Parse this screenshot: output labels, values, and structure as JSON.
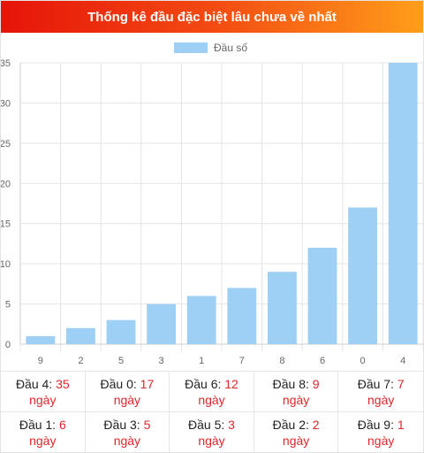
{
  "title": "Thống kê đầu đặc biệt lâu chưa về nhất",
  "colors": {
    "bar": "#9ecff5",
    "accent": "#e0262b",
    "title_gradient": [
      "#e6140a",
      "#ff9e1a"
    ]
  },
  "chart_data": {
    "type": "bar",
    "categories": [
      "9",
      "2",
      "5",
      "3",
      "1",
      "7",
      "8",
      "6",
      "0",
      "4"
    ],
    "series": [
      {
        "name": "Đầu số",
        "values": [
          1,
          2,
          3,
          5,
          6,
          7,
          9,
          12,
          17,
          35
        ]
      }
    ],
    "yticks": [
      "0",
      "5",
      "10",
      "15",
      "20",
      "25",
      "30",
      "35"
    ],
    "ylim": [
      0,
      35
    ],
    "grid": true,
    "legend": "top-center"
  },
  "stats": [
    {
      "label": "Đầu 4:",
      "value": "35",
      "unit": "ngày"
    },
    {
      "label": "Đầu 0:",
      "value": "17",
      "unit": "ngày"
    },
    {
      "label": "Đầu 6:",
      "value": "12",
      "unit": "ngày"
    },
    {
      "label": "Đầu 8:",
      "value": "9",
      "unit": "ngày"
    },
    {
      "label": "Đầu 7:",
      "value": "7",
      "unit": "ngày"
    },
    {
      "label": "Đầu 1:",
      "value": "6",
      "unit": "ngày"
    },
    {
      "label": "Đầu 3:",
      "value": "5",
      "unit": "ngày"
    },
    {
      "label": "Đầu 5:",
      "value": "3",
      "unit": "ngày"
    },
    {
      "label": "Đầu 2:",
      "value": "2",
      "unit": "ngày"
    },
    {
      "label": "Đầu 9:",
      "value": "1",
      "unit": "ngày"
    }
  ]
}
